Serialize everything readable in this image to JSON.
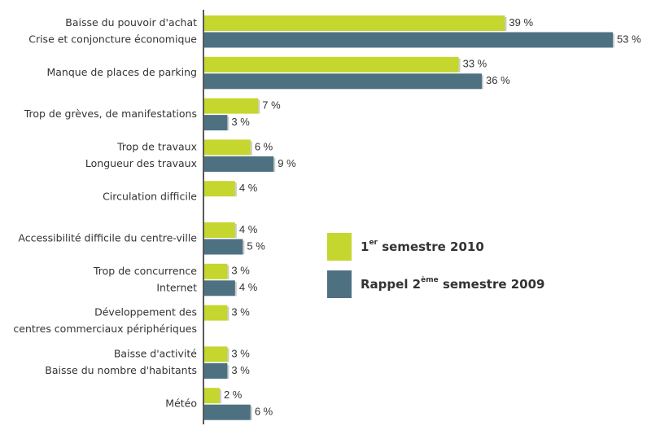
{
  "chart_data": {
    "type": "bar",
    "orientation": "horizontal",
    "categories": [
      [
        "Baisse du pouvoir d'achat",
        "Crise et conjoncture économique"
      ],
      [
        "Manque de places de parking"
      ],
      [
        "Trop de grèves, de manifestations"
      ],
      [
        "Trop de travaux",
        "Longueur des travaux"
      ],
      [
        "Circulation difficile"
      ],
      [
        "Accessibilité difficile du centre-ville"
      ],
      [
        "Trop de concurrence",
        "Internet"
      ],
      [
        "Développement des",
        "centres commerciaux périphériques"
      ],
      [
        "Baisse d'activité",
        "Baisse du nombre d'habitants"
      ],
      [
        "Météo"
      ]
    ],
    "series": [
      {
        "name": [
          "1",
          "er",
          " semestre 2010"
        ],
        "color": "#c5d62e",
        "values": [
          39,
          33,
          7,
          6,
          4,
          4,
          3,
          3,
          3,
          2
        ],
        "value_labels": [
          "39 %",
          "33 %",
          "7 %",
          "6 %",
          "4 %",
          "4 %",
          "3 %",
          "3 %",
          "3 %",
          "2 %"
        ]
      },
      {
        "name": [
          "Rappel 2",
          "ème",
          " semestre 2009"
        ],
        "color": "#4e7182",
        "values": [
          53,
          36,
          3,
          9,
          null,
          5,
          4,
          null,
          3,
          6
        ],
        "value_labels": [
          "53 %",
          "36 %",
          "3 %",
          "9 %",
          null,
          "5 %",
          "4 %",
          null,
          "3 %",
          "6 %"
        ]
      }
    ],
    "xlim": [
      0,
      55
    ]
  }
}
